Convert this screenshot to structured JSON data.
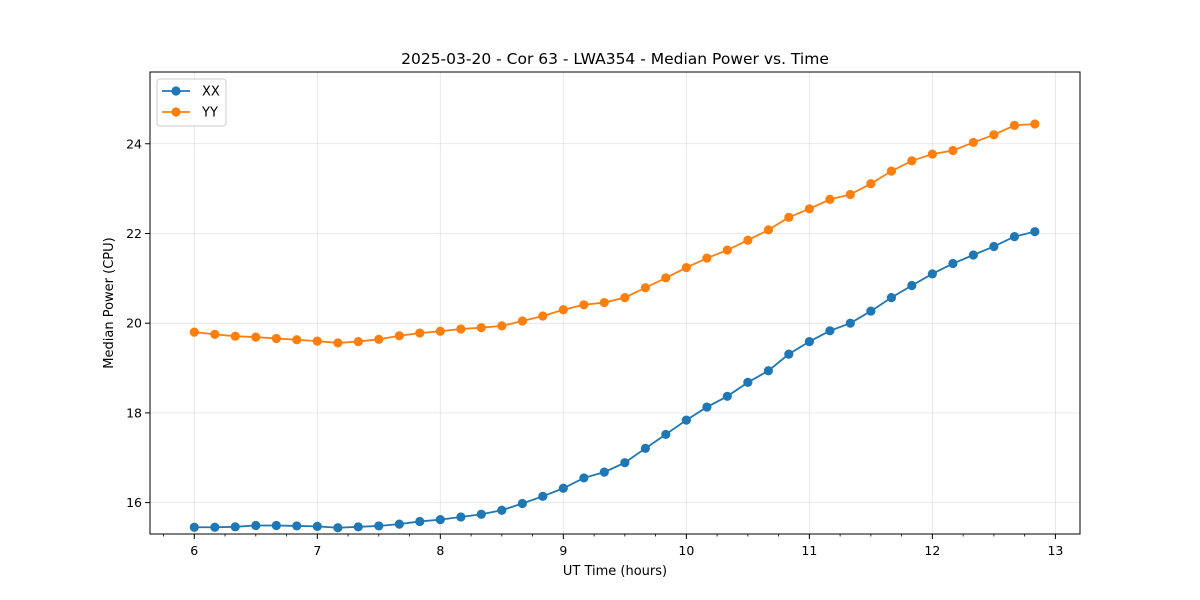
{
  "chart_data": {
    "type": "line",
    "title": "2025-03-20 - Cor 63 - LWA354 - Median Power vs. Time",
    "xlabel": "UT Time (hours)",
    "ylabel": "Median Power (CPU)",
    "xlim": [
      5.64,
      13.2
    ],
    "ylim": [
      15.3,
      25.6
    ],
    "xticks": [
      6,
      7,
      8,
      9,
      10,
      11,
      12,
      13
    ],
    "yticks": [
      16,
      18,
      20,
      22,
      24
    ],
    "grid": true,
    "legend": "top-left",
    "x": [
      6.0,
      6.167,
      6.333,
      6.5,
      6.667,
      6.833,
      7.0,
      7.167,
      7.333,
      7.5,
      7.667,
      7.833,
      8.0,
      8.167,
      8.333,
      8.5,
      8.667,
      8.833,
      9.0,
      9.167,
      9.333,
      9.5,
      9.667,
      9.833,
      10.0,
      10.167,
      10.333,
      10.5,
      10.667,
      10.833,
      11.0,
      11.167,
      11.333,
      11.5,
      11.667,
      11.833,
      12.0,
      12.167,
      12.333,
      12.5,
      12.667,
      12.833
    ],
    "series": [
      {
        "name": "XX",
        "color": "#1f77b4",
        "values": [
          15.45,
          15.45,
          15.46,
          15.49,
          15.49,
          15.48,
          15.47,
          15.44,
          15.46,
          15.48,
          15.52,
          15.58,
          15.62,
          15.68,
          15.74,
          15.83,
          15.98,
          16.14,
          16.32,
          16.55,
          16.68,
          16.89,
          17.21,
          17.52,
          17.84,
          18.13,
          18.37,
          18.68,
          18.94,
          19.31,
          19.59,
          19.83,
          20.0,
          20.27,
          20.57,
          20.84,
          21.1,
          21.33,
          21.52,
          21.71,
          21.93,
          22.04
        ]
      },
      {
        "name": "YY",
        "color": "#ff7f0e",
        "values": [
          19.8,
          19.75,
          19.71,
          19.69,
          19.66,
          19.63,
          19.6,
          19.56,
          19.59,
          19.64,
          19.72,
          19.78,
          19.82,
          19.87,
          19.9,
          19.94,
          20.05,
          20.16,
          20.3,
          20.41,
          20.46,
          20.57,
          20.79,
          21.01,
          21.24,
          21.45,
          21.63,
          21.85,
          22.08,
          22.36,
          22.55,
          22.76,
          22.87,
          23.11,
          23.39,
          23.62,
          23.77,
          23.85,
          24.03,
          24.2,
          24.41,
          24.44
        ]
      }
    ]
  }
}
